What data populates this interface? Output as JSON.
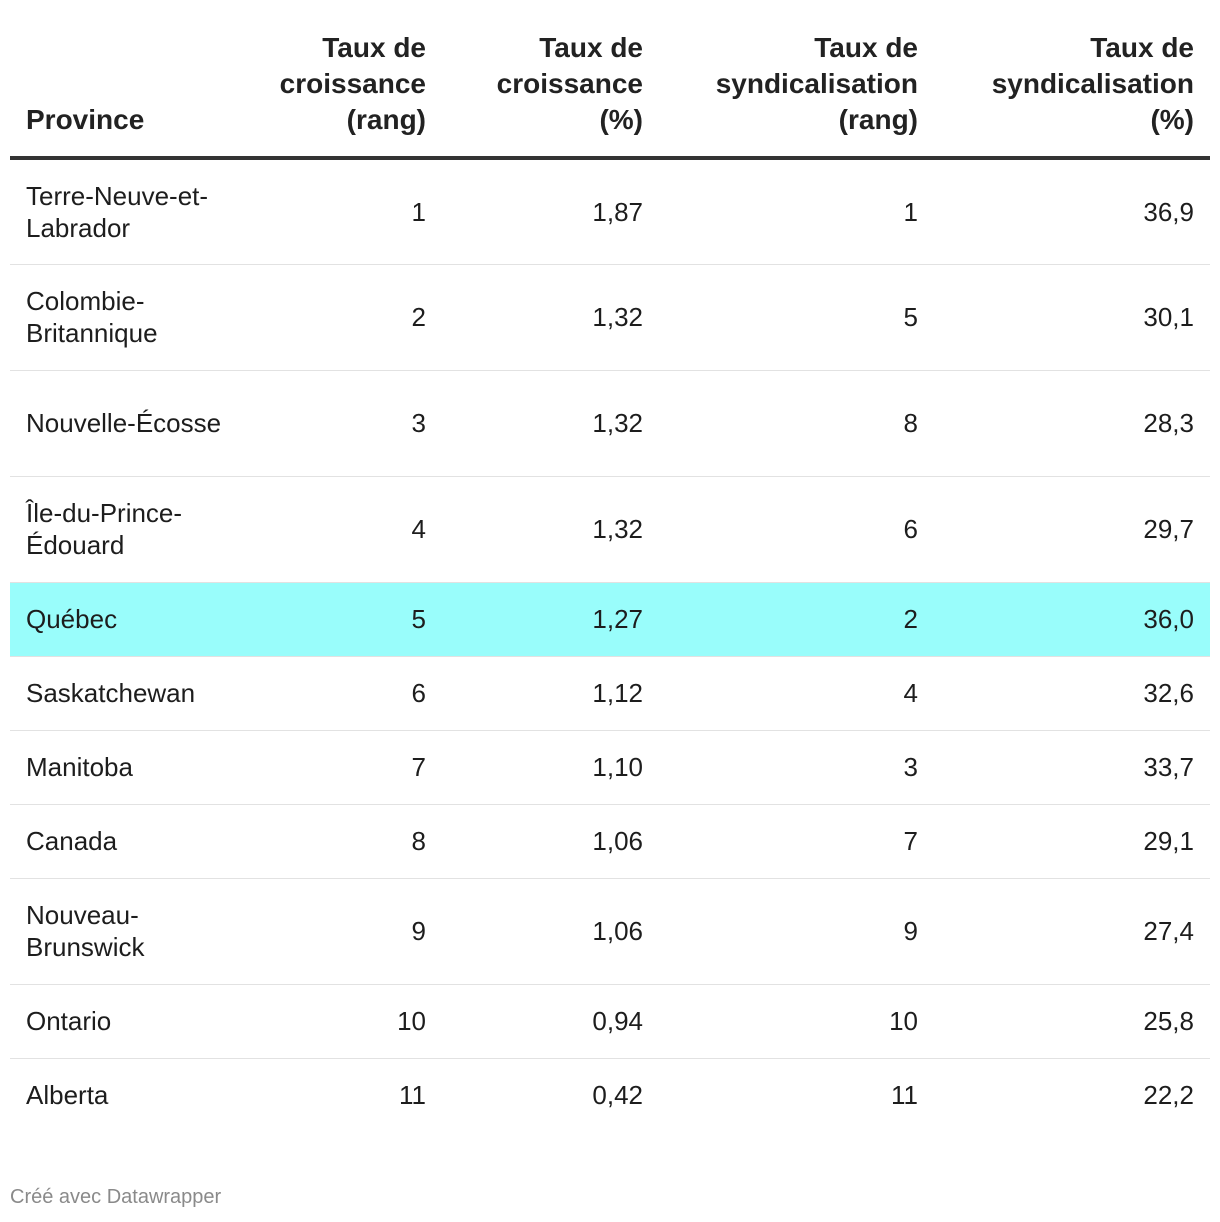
{
  "chart_data": {
    "type": "table",
    "columns": [
      "Province",
      "Taux de croissance (rang)",
      "Taux de croissance (%)",
      "Taux de syndicalisation (rang)",
      "Taux de syndicalisation (%)"
    ],
    "rows": [
      [
        "Terre-Neuve-et-Labrador",
        "1",
        "1,87",
        "1",
        "36,9"
      ],
      [
        "Colombie-Britannique",
        "2",
        "1,32",
        "5",
        "30,1"
      ],
      [
        "Nouvelle-Écosse",
        "3",
        "1,32",
        "8",
        "28,3"
      ],
      [
        "Île-du-Prince-Édouard",
        "4",
        "1,32",
        "6",
        "29,7"
      ],
      [
        "Québec",
        "5",
        "1,27",
        "2",
        "36,0"
      ],
      [
        "Saskatchewan",
        "6",
        "1,12",
        "4",
        "32,6"
      ],
      [
        "Manitoba",
        "7",
        "1,10",
        "3",
        "33,7"
      ],
      [
        "Canada",
        "8",
        "1,06",
        "7",
        "29,1"
      ],
      [
        "Nouveau-Brunswick",
        "9",
        "1,06",
        "9",
        "27,4"
      ],
      [
        "Ontario",
        "10",
        "0,94",
        "10",
        "25,8"
      ],
      [
        "Alberta",
        "11",
        "0,42",
        "11",
        "22,2"
      ]
    ],
    "highlighted_row": "Québec",
    "highlight_color": "#99fdfb"
  },
  "footer": {
    "credit": "Créé avec Datawrapper"
  },
  "colors": {
    "header_rule": "#333333",
    "row_divider": "#e2e2e2",
    "footer_text": "#8a8a8a"
  }
}
